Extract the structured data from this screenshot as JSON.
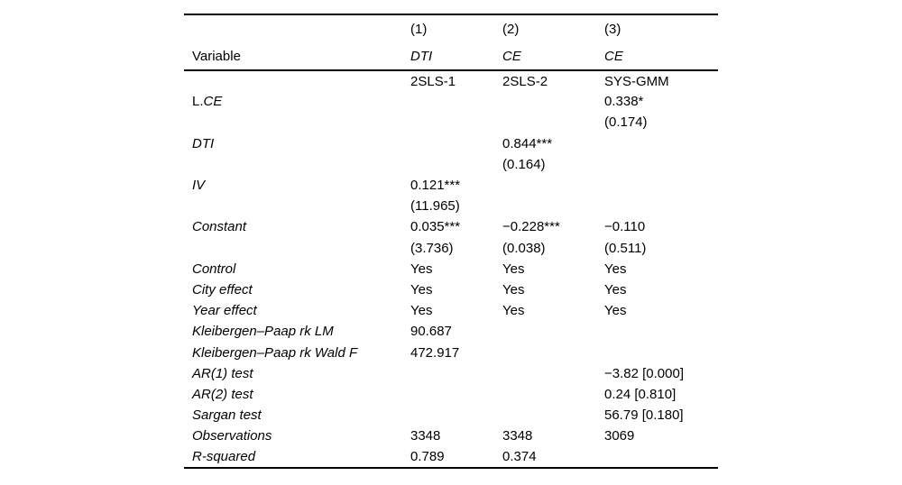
{
  "page": {
    "background": "#ffffff",
    "text_color": "#000000",
    "rule_color": "#000000"
  },
  "table": {
    "name": "regression-results-table",
    "header_rows": [
      {
        "cells": [
          {
            "text": "",
            "italic": false
          },
          {
            "text": "(1)",
            "italic": false
          },
          {
            "text": "(2)",
            "italic": false
          },
          {
            "text": "(3)",
            "italic": false
          }
        ]
      },
      {
        "cells": [
          {
            "text": "Variable",
            "italic": false
          },
          {
            "text": "DTI",
            "italic": true
          },
          {
            "text": "CE",
            "italic": true
          },
          {
            "text": "CE",
            "italic": true
          }
        ]
      }
    ],
    "body_rows": [
      {
        "cells": [
          {
            "text": "",
            "italic": false
          },
          {
            "text": "2SLS-1",
            "italic": false
          },
          {
            "text": "2SLS-2",
            "italic": false
          },
          {
            "text": "SYS-GMM",
            "italic": false
          }
        ]
      },
      {
        "cells": [
          {
            "prefix": "L.",
            "text": "CE",
            "italic": true
          },
          {
            "text": "",
            "italic": false
          },
          {
            "text": "",
            "italic": false
          },
          {
            "text": "0.338*",
            "italic": false
          }
        ]
      },
      {
        "cells": [
          {
            "text": "",
            "italic": false
          },
          {
            "text": "",
            "italic": false
          },
          {
            "text": "",
            "italic": false
          },
          {
            "text": "(0.174)",
            "italic": false
          }
        ]
      },
      {
        "cells": [
          {
            "text": "DTI",
            "italic": true
          },
          {
            "text": "",
            "italic": false
          },
          {
            "text": "0.844***",
            "italic": false
          },
          {
            "text": "",
            "italic": false
          }
        ]
      },
      {
        "cells": [
          {
            "text": "",
            "italic": false
          },
          {
            "text": "",
            "italic": false
          },
          {
            "text": "(0.164)",
            "italic": false
          },
          {
            "text": "",
            "italic": false
          }
        ]
      },
      {
        "cells": [
          {
            "text": "IV",
            "italic": true
          },
          {
            "text": "0.121***",
            "italic": false
          },
          {
            "text": "",
            "italic": false
          },
          {
            "text": "",
            "italic": false
          }
        ]
      },
      {
        "cells": [
          {
            "text": "",
            "italic": false
          },
          {
            "text": "(11.965)",
            "italic": false
          },
          {
            "text": "",
            "italic": false
          },
          {
            "text": "",
            "italic": false
          }
        ]
      },
      {
        "cells": [
          {
            "text": "Constant",
            "italic": true
          },
          {
            "text": "0.035***",
            "italic": false
          },
          {
            "text": "−0.228***",
            "italic": false
          },
          {
            "text": "−0.110",
            "italic": false
          }
        ]
      },
      {
        "cells": [
          {
            "text": "",
            "italic": false
          },
          {
            "text": "(3.736)",
            "italic": false
          },
          {
            "text": "(0.038)",
            "italic": false
          },
          {
            "text": "(0.511)",
            "italic": false
          }
        ]
      },
      {
        "cells": [
          {
            "text": "Control",
            "italic": true
          },
          {
            "text": "Yes",
            "italic": false
          },
          {
            "text": "Yes",
            "italic": false
          },
          {
            "text": "Yes",
            "italic": false
          }
        ]
      },
      {
        "cells": [
          {
            "text": "City effect",
            "italic": true
          },
          {
            "text": "Yes",
            "italic": false
          },
          {
            "text": "Yes",
            "italic": false
          },
          {
            "text": "Yes",
            "italic": false
          }
        ]
      },
      {
        "cells": [
          {
            "text": "Year effect",
            "italic": true
          },
          {
            "text": "Yes",
            "italic": false
          },
          {
            "text": "Yes",
            "italic": false
          },
          {
            "text": "Yes",
            "italic": false
          }
        ]
      },
      {
        "cells": [
          {
            "text": "Kleibergen–Paap rk LM",
            "italic": true
          },
          {
            "text": "90.687",
            "italic": false
          },
          {
            "text": "",
            "italic": false
          },
          {
            "text": "",
            "italic": false
          }
        ]
      },
      {
        "cells": [
          {
            "text": "Kleibergen–Paap rk Wald F",
            "italic": true
          },
          {
            "text": "472.917",
            "italic": false
          },
          {
            "text": "",
            "italic": false
          },
          {
            "text": "",
            "italic": false
          }
        ]
      },
      {
        "cells": [
          {
            "text": "AR(1) test",
            "italic": true
          },
          {
            "text": "",
            "italic": false
          },
          {
            "text": "",
            "italic": false
          },
          {
            "text": "−3.82 [0.000]",
            "italic": false
          }
        ]
      },
      {
        "cells": [
          {
            "text": "AR(2) test",
            "italic": true
          },
          {
            "text": "",
            "italic": false
          },
          {
            "text": "",
            "italic": false
          },
          {
            "text": "0.24 [0.810]",
            "italic": false
          }
        ]
      },
      {
        "cells": [
          {
            "text": "Sargan test",
            "italic": true
          },
          {
            "text": "",
            "italic": false
          },
          {
            "text": "",
            "italic": false
          },
          {
            "text": "56.79 [0.180]",
            "italic": false
          }
        ]
      },
      {
        "cells": [
          {
            "text": "Observations",
            "italic": true
          },
          {
            "text": "3348",
            "italic": false
          },
          {
            "text": "3348",
            "italic": false
          },
          {
            "text": "3069",
            "italic": false
          }
        ]
      },
      {
        "cells": [
          {
            "text": "R-squared",
            "italic": true
          },
          {
            "text": "0.789",
            "italic": false
          },
          {
            "text": "0.374",
            "italic": false
          },
          {
            "text": "",
            "italic": false
          }
        ]
      }
    ]
  }
}
